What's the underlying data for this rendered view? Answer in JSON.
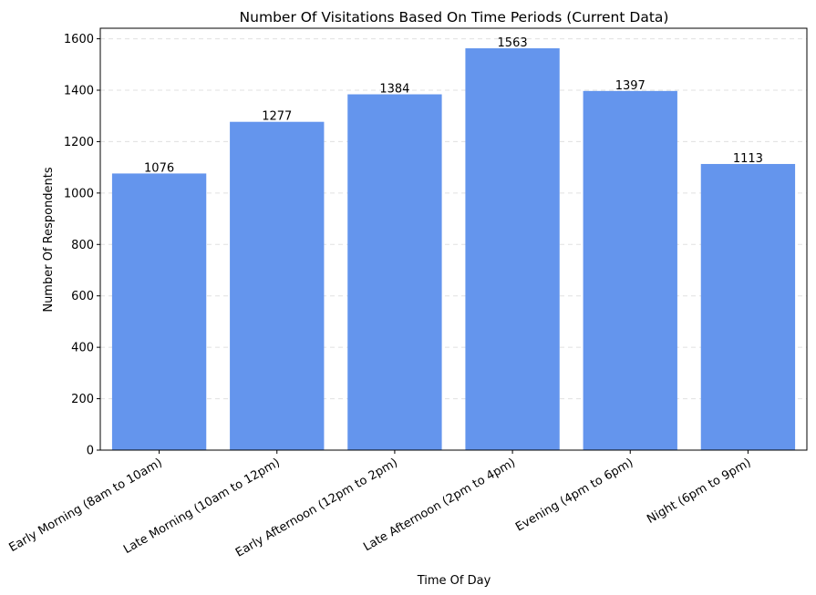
{
  "chart_data": {
    "type": "bar",
    "title": "Number Of Visitations Based On Time Periods (Current Data)",
    "xlabel": "Time Of Day",
    "ylabel": "Number Of Respondents",
    "categories": [
      "Early Morning (8am to 10am)",
      "Late Morning (10am to 12pm)",
      "Early Afternoon (12pm to 2pm)",
      "Late Afternoon (2pm to 4pm)",
      "Evening (4pm to 6pm)",
      "Night (6pm to 9pm)"
    ],
    "values": [
      1076,
      1277,
      1384,
      1563,
      1397,
      1113
    ],
    "ylim": [
      0,
      1641
    ],
    "yticks": [
      0,
      200,
      400,
      600,
      800,
      1000,
      1200,
      1400,
      1600
    ],
    "grid": "y-dashed",
    "colors": {
      "bar": "#6495ED"
    }
  }
}
